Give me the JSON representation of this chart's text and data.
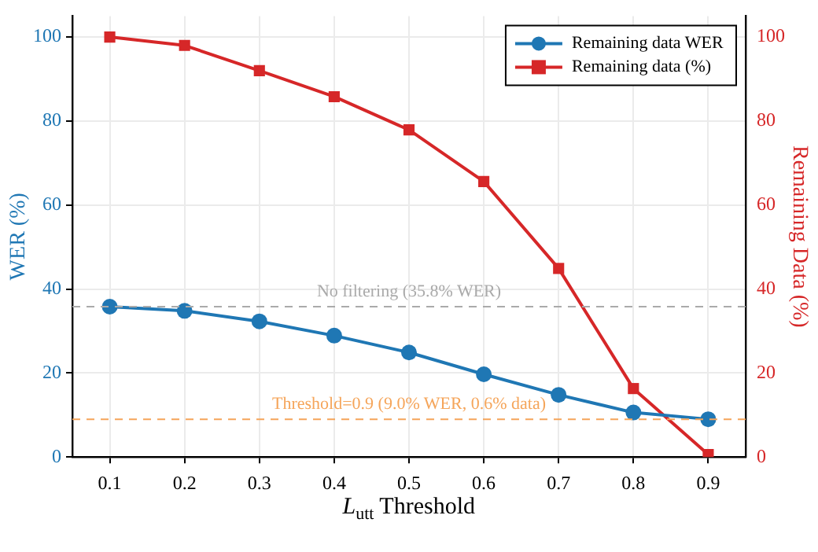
{
  "chart_data": {
    "type": "line",
    "x": [
      0.1,
      0.2,
      0.3,
      0.4,
      0.5,
      0.6,
      0.7,
      0.8,
      0.9
    ],
    "series": [
      {
        "name": "Remaining data WER",
        "color": "#1f77b4",
        "marker": "circle",
        "values": [
          35.8,
          34.8,
          32.3,
          28.9,
          24.9,
          19.7,
          14.8,
          10.6,
          9.0
        ]
      },
      {
        "name": "Remaining data (%)",
        "color": "#d62728",
        "marker": "square",
        "axis": "y2",
        "values": [
          100,
          98.0,
          92.0,
          85.8,
          77.9,
          65.6,
          44.9,
          16.3,
          0.6
        ]
      }
    ],
    "xlabel": "L$_{utt}$ Threshold",
    "ylabel": "WER (%)",
    "y2label": "Remaining Data (%)",
    "xlim": [
      0.05,
      0.95
    ],
    "xticks": [
      0.1,
      0.2,
      0.3,
      0.4,
      0.5,
      0.6,
      0.7,
      0.8,
      0.9
    ],
    "ylim": [
      0,
      105
    ],
    "yticks": [
      0,
      20,
      40,
      60,
      80,
      100
    ],
    "y2lim": [
      0,
      105
    ],
    "y2ticks": [
      0,
      20,
      40,
      60,
      80,
      100
    ],
    "ref_lines": [
      {
        "axis": "y",
        "value": 35.8,
        "label": "No filtering (35.8% WER)",
        "color": "#aaaaaa",
        "line_style": "dashed"
      },
      {
        "axis": "y",
        "value": 9.0,
        "label": "Threshold=0.9 (9.0% WER, 0.6% data)",
        "color": "#f5a55a",
        "line_style": "dashed"
      }
    ],
    "grid": true,
    "legend": "top right"
  }
}
